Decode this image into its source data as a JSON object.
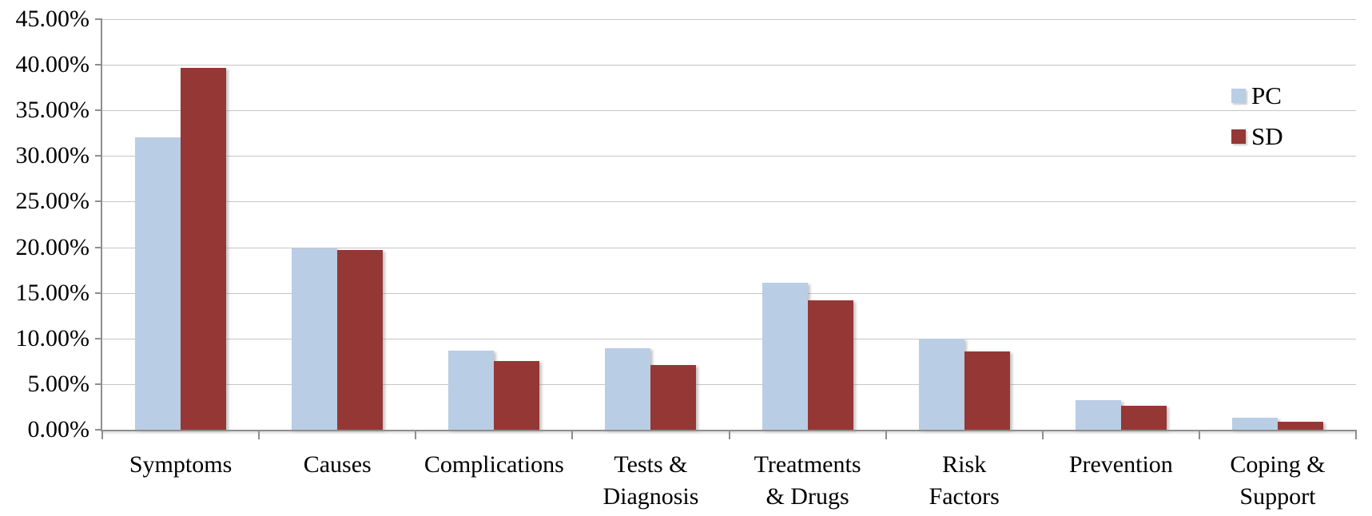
{
  "chart_data": {
    "type": "bar",
    "title": "",
    "xlabel": "",
    "ylabel": "",
    "categories": [
      "Symptoms",
      "Causes",
      "Complications",
      "Tests &\nDiagnosis",
      "Treatments\n& Drugs",
      "Risk\nFactors",
      "Prevention",
      "Coping &\nSupport"
    ],
    "series": [
      {
        "name": "PC",
        "color": "#b9cde5",
        "values": [
          32.0,
          19.9,
          8.7,
          8.9,
          16.1,
          10.0,
          3.2,
          1.3
        ]
      },
      {
        "name": "SD",
        "color": "#953734",
        "values": [
          39.7,
          19.7,
          7.5,
          7.1,
          14.2,
          8.6,
          2.6,
          0.9
        ]
      }
    ],
    "ylim": [
      0,
      45
    ],
    "ytick_step": 5,
    "ytick_labels": [
      "0.00%",
      "5.00%",
      "10.00%",
      "15.00%",
      "20.00%",
      "25.00%",
      "30.00%",
      "35.00%",
      "40.00%",
      "45.00%"
    ],
    "grid": true,
    "legend_position": "top-right"
  },
  "colors": {
    "gridline": "#c6c6c6",
    "axis": "#8e8e8e",
    "text": "#000000",
    "background": "#ffffff"
  }
}
